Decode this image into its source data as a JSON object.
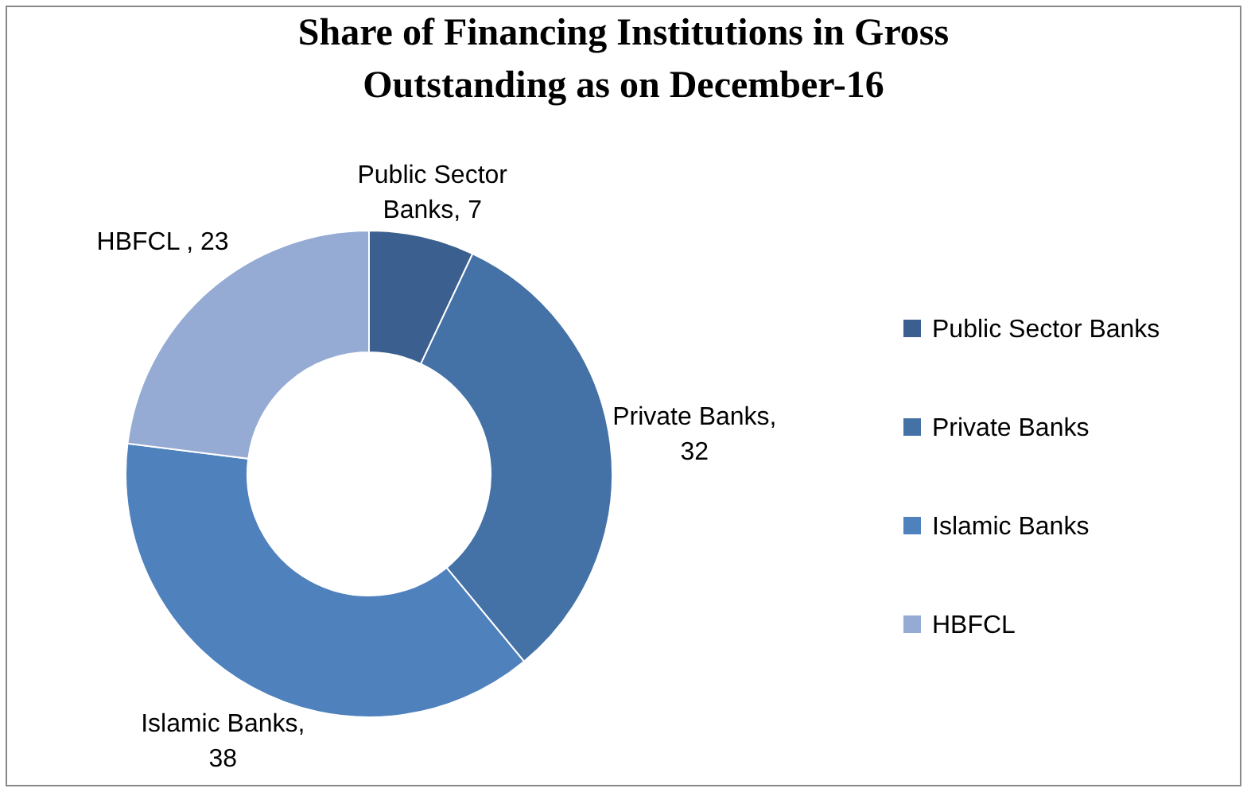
{
  "chart_data": {
    "type": "donut",
    "title": "Share of Financing Institutions in Gross Outstanding as on December-16",
    "categories": [
      "Public Sector Banks",
      "Private Banks",
      "Islamic Banks",
      "HBFCL"
    ],
    "values": [
      7,
      32,
      38,
      23
    ],
    "colors": [
      "#3b5f8e",
      "#4471a6",
      "#4f81bd",
      "#95abd3"
    ],
    "value_labels": [
      "Public Sector Banks, 7",
      "Private Banks, 32",
      "Islamic Banks, 38",
      "HBFCL , 23"
    ],
    "legend": "right"
  }
}
